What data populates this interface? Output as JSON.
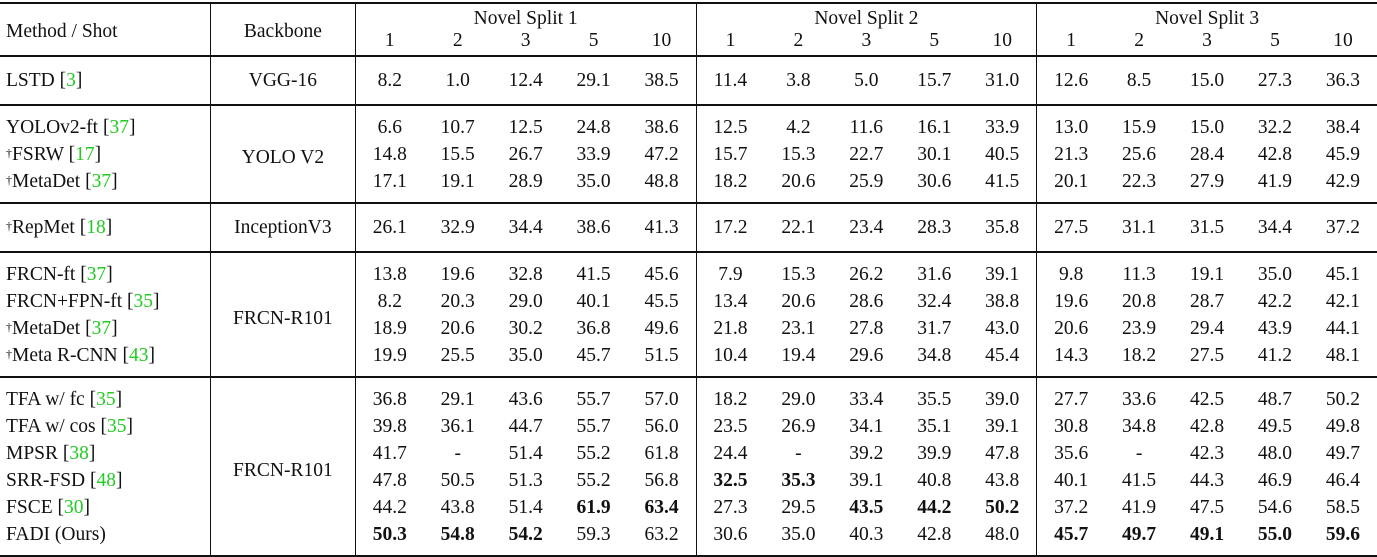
{
  "header": {
    "method_label": "Method / Shot",
    "backbone_label": "Backbone",
    "splits": [
      "Novel Split 1",
      "Novel Split 2",
      "Novel Split 3"
    ],
    "shots": [
      "1",
      "2",
      "3",
      "5",
      "10"
    ]
  },
  "groups": [
    {
      "backbone": "VGG-16",
      "rows": [
        {
          "dagger": "",
          "method": "LSTD",
          "ref": "3",
          "values": [
            "8.2",
            "1.0",
            "12.4",
            "29.1",
            "38.5",
            "11.4",
            "3.8",
            "5.0",
            "15.7",
            "31.0",
            "12.6",
            "8.5",
            "15.0",
            "27.3",
            "36.3"
          ],
          "bold": []
        }
      ]
    },
    {
      "backbone": "YOLO V2",
      "rows": [
        {
          "dagger": "",
          "method": "YOLOv2-ft",
          "ref": "37",
          "values": [
            "6.6",
            "10.7",
            "12.5",
            "24.8",
            "38.6",
            "12.5",
            "4.2",
            "11.6",
            "16.1",
            "33.9",
            "13.0",
            "15.9",
            "15.0",
            "32.2",
            "38.4"
          ],
          "bold": []
        },
        {
          "dagger": "†",
          "method": "FSRW",
          "ref": "17",
          "values": [
            "14.8",
            "15.5",
            "26.7",
            "33.9",
            "47.2",
            "15.7",
            "15.3",
            "22.7",
            "30.1",
            "40.5",
            "21.3",
            "25.6",
            "28.4",
            "42.8",
            "45.9"
          ],
          "bold": []
        },
        {
          "dagger": "†",
          "method": "MetaDet",
          "ref": "37",
          "values": [
            "17.1",
            "19.1",
            "28.9",
            "35.0",
            "48.8",
            "18.2",
            "20.6",
            "25.9",
            "30.6",
            "41.5",
            "20.1",
            "22.3",
            "27.9",
            "41.9",
            "42.9"
          ],
          "bold": []
        }
      ]
    },
    {
      "backbone": "InceptionV3",
      "rows": [
        {
          "dagger": "†",
          "method": "RepMet",
          "ref": "18",
          "values": [
            "26.1",
            "32.9",
            "34.4",
            "38.6",
            "41.3",
            "17.2",
            "22.1",
            "23.4",
            "28.3",
            "35.8",
            "27.5",
            "31.1",
            "31.5",
            "34.4",
            "37.2"
          ],
          "bold": []
        }
      ]
    },
    {
      "backbone": "FRCN-R101",
      "rows": [
        {
          "dagger": "",
          "method": "FRCN-ft",
          "ref": "37",
          "values": [
            "13.8",
            "19.6",
            "32.8",
            "41.5",
            "45.6",
            "7.9",
            "15.3",
            "26.2",
            "31.6",
            "39.1",
            "9.8",
            "11.3",
            "19.1",
            "35.0",
            "45.1"
          ],
          "bold": []
        },
        {
          "dagger": "",
          "method": "FRCN+FPN-ft",
          "ref": "35",
          "values": [
            "8.2",
            "20.3",
            "29.0",
            "40.1",
            "45.5",
            "13.4",
            "20.6",
            "28.6",
            "32.4",
            "38.8",
            "19.6",
            "20.8",
            "28.7",
            "42.2",
            "42.1"
          ],
          "bold": []
        },
        {
          "dagger": "†",
          "method": "MetaDet",
          "ref": "37",
          "values": [
            "18.9",
            "20.6",
            "30.2",
            "36.8",
            "49.6",
            "21.8",
            "23.1",
            "27.8",
            "31.7",
            "43.0",
            "20.6",
            "23.9",
            "29.4",
            "43.9",
            "44.1"
          ],
          "bold": []
        },
        {
          "dagger": "†",
          "method": "Meta R-CNN",
          "ref": "43",
          "values": [
            "19.9",
            "25.5",
            "35.0",
            "45.7",
            "51.5",
            "10.4",
            "19.4",
            "29.6",
            "34.8",
            "45.4",
            "14.3",
            "18.2",
            "27.5",
            "41.2",
            "48.1"
          ],
          "bold": []
        }
      ]
    },
    {
      "backbone": "FRCN-R101",
      "rows": [
        {
          "dagger": "",
          "method": "TFA w/ fc",
          "ref": "35",
          "values": [
            "36.8",
            "29.1",
            "43.6",
            "55.7",
            "57.0",
            "18.2",
            "29.0",
            "33.4",
            "35.5",
            "39.0",
            "27.7",
            "33.6",
            "42.5",
            "48.7",
            "50.2"
          ],
          "bold": []
        },
        {
          "dagger": "",
          "method": "TFA w/ cos",
          "ref": "35",
          "values": [
            "39.8",
            "36.1",
            "44.7",
            "55.7",
            "56.0",
            "23.5",
            "26.9",
            "34.1",
            "35.1",
            "39.1",
            "30.8",
            "34.8",
            "42.8",
            "49.5",
            "49.8"
          ],
          "bold": []
        },
        {
          "dagger": "",
          "method": "MPSR",
          "ref": "38",
          "values": [
            "41.7",
            "-",
            "51.4",
            "55.2",
            "61.8",
            "24.4",
            "-",
            "39.2",
            "39.9",
            "47.8",
            "35.6",
            "-",
            "42.3",
            "48.0",
            "49.7"
          ],
          "bold": []
        },
        {
          "dagger": "",
          "method": "SRR-FSD",
          "ref": "48",
          "values": [
            "47.8",
            "50.5",
            "51.3",
            "55.2",
            "56.8",
            "32.5",
            "35.3",
            "39.1",
            "40.8",
            "43.8",
            "40.1",
            "41.5",
            "44.3",
            "46.9",
            "46.4"
          ],
          "bold": [
            5,
            6
          ]
        },
        {
          "dagger": "",
          "method": "FSCE",
          "ref": "30",
          "values": [
            "44.2",
            "43.8",
            "51.4",
            "61.9",
            "63.4",
            "27.3",
            "29.5",
            "43.5",
            "44.2",
            "50.2",
            "37.2",
            "41.9",
            "47.5",
            "54.6",
            "58.5"
          ],
          "bold": [
            3,
            4,
            7,
            8,
            9
          ]
        },
        {
          "dagger": "",
          "method": "FADI (Ours)",
          "ref": "",
          "values": [
            "50.3",
            "54.8",
            "54.2",
            "59.3",
            "63.2",
            "30.6",
            "35.0",
            "40.3",
            "42.8",
            "48.0",
            "45.7",
            "49.7",
            "49.1",
            "55.0",
            "59.6"
          ],
          "bold": [
            0,
            1,
            2,
            10,
            11,
            12,
            13,
            14
          ]
        }
      ]
    }
  ]
}
